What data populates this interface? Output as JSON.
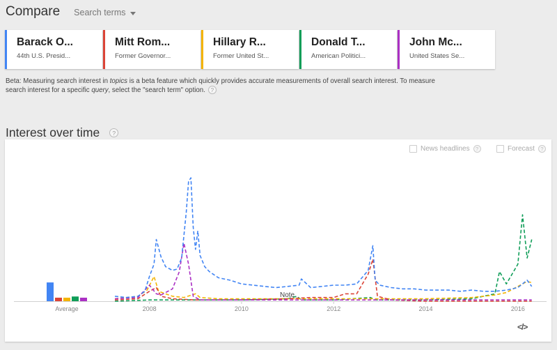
{
  "header": {
    "title": "Compare",
    "search_terms_label": "Search terms"
  },
  "topics": [
    {
      "name": "Barack O...",
      "desc": "44th U.S. Presid...",
      "color": "#4285f4"
    },
    {
      "name": "Mitt Rom...",
      "desc": "Former Governor...",
      "color": "#db4437"
    },
    {
      "name": "Hillary R...",
      "desc": "Former United St...",
      "color": "#f4b400"
    },
    {
      "name": "Donald T...",
      "desc": "American Politici...",
      "color": "#0f9d58"
    },
    {
      "name": "John Mc...",
      "desc": "United States Se...",
      "color": "#ab30c4"
    }
  ],
  "beta_note": {
    "part1": "Beta: Measuring search interest in ",
    "topics_word": "topics",
    "part2": " is a beta feature which quickly provides accurate measurements of overall search interest. To measure search interest for a specific ",
    "query_word": "query",
    "part3": ", select the \"search term\" option."
  },
  "section": {
    "title": "Interest over time",
    "help": "?"
  },
  "options": {
    "news_headlines": "News headlines",
    "forecast": "Forecast"
  },
  "embed_label": "</>",
  "chart_data": {
    "type": "line",
    "average_label": "Average",
    "note_label": "Note",
    "x_ticks": [
      "2008",
      "2010",
      "2012",
      "2014",
      "2016"
    ],
    "ylim": [
      0,
      100
    ],
    "averages": [
      {
        "name": "Barack O...",
        "value": 16
      },
      {
        "name": "Mitt Rom...",
        "value": 3
      },
      {
        "name": "Hillary R...",
        "value": 3
      },
      {
        "name": "Donald T...",
        "value": 4
      },
      {
        "name": "John Mc...",
        "value": 3
      }
    ],
    "series": [
      {
        "name": "Barack O...",
        "dash": true,
        "points": [
          [
            2007.25,
            4
          ],
          [
            2007.5,
            3
          ],
          [
            2007.75,
            4
          ],
          [
            2007.9,
            8
          ],
          [
            2008.0,
            20
          ],
          [
            2008.1,
            30
          ],
          [
            2008.15,
            50
          ],
          [
            2008.25,
            36
          ],
          [
            2008.35,
            28
          ],
          [
            2008.5,
            25
          ],
          [
            2008.6,
            26
          ],
          [
            2008.7,
            35
          ],
          [
            2008.8,
            72
          ],
          [
            2008.85,
            97
          ],
          [
            2008.9,
            100
          ],
          [
            2008.95,
            60
          ],
          [
            2009.0,
            42
          ],
          [
            2009.05,
            57
          ],
          [
            2009.1,
            37
          ],
          [
            2009.2,
            28
          ],
          [
            2009.3,
            24
          ],
          [
            2009.5,
            19
          ],
          [
            2009.75,
            17
          ],
          [
            2010.0,
            14
          ],
          [
            2010.25,
            13
          ],
          [
            2010.5,
            12
          ],
          [
            2010.75,
            11
          ],
          [
            2011.0,
            12
          ],
          [
            2011.25,
            13
          ],
          [
            2011.3,
            18
          ],
          [
            2011.5,
            11
          ],
          [
            2011.75,
            12
          ],
          [
            2012.0,
            13
          ],
          [
            2012.25,
            13
          ],
          [
            2012.5,
            14
          ],
          [
            2012.75,
            25
          ],
          [
            2012.85,
            45
          ],
          [
            2012.9,
            17
          ],
          [
            2013.0,
            13
          ],
          [
            2013.25,
            11
          ],
          [
            2013.5,
            10
          ],
          [
            2013.75,
            10
          ],
          [
            2014.0,
            9
          ],
          [
            2014.25,
            9
          ],
          [
            2014.5,
            9
          ],
          [
            2014.75,
            8
          ],
          [
            2015.0,
            9
          ],
          [
            2015.25,
            8
          ],
          [
            2015.5,
            8
          ],
          [
            2015.75,
            9
          ],
          [
            2016.0,
            11
          ],
          [
            2016.2,
            17
          ],
          [
            2016.3,
            12
          ]
        ]
      },
      {
        "name": "Mitt Rom...",
        "dash": true,
        "points": [
          [
            2007.25,
            1
          ],
          [
            2007.75,
            2
          ],
          [
            2008.0,
            8
          ],
          [
            2008.15,
            11
          ],
          [
            2008.25,
            4
          ],
          [
            2008.5,
            2
          ],
          [
            2009.0,
            1
          ],
          [
            2010.0,
            1
          ],
          [
            2011.0,
            2
          ],
          [
            2011.5,
            3
          ],
          [
            2012.0,
            3
          ],
          [
            2012.25,
            6
          ],
          [
            2012.5,
            6
          ],
          [
            2012.75,
            22
          ],
          [
            2012.85,
            34
          ],
          [
            2012.95,
            4
          ],
          [
            2013.25,
            1
          ],
          [
            2014.0,
            0
          ],
          [
            2015.0,
            0
          ],
          [
            2016.0,
            0
          ],
          [
            2016.3,
            0
          ]
        ]
      },
      {
        "name": "Hillary R...",
        "dash": true,
        "points": [
          [
            2007.25,
            2
          ],
          [
            2007.75,
            4
          ],
          [
            2007.95,
            9
          ],
          [
            2008.1,
            20
          ],
          [
            2008.2,
            8
          ],
          [
            2008.35,
            6
          ],
          [
            2008.5,
            4
          ],
          [
            2008.75,
            3
          ],
          [
            2009.0,
            6
          ],
          [
            2009.1,
            3
          ],
          [
            2009.5,
            2
          ],
          [
            2010.0,
            2
          ],
          [
            2011.0,
            2
          ],
          [
            2012.0,
            2
          ],
          [
            2013.0,
            2
          ],
          [
            2014.0,
            2
          ],
          [
            2015.0,
            3
          ],
          [
            2015.25,
            4
          ],
          [
            2015.5,
            5
          ],
          [
            2015.75,
            7
          ],
          [
            2016.0,
            12
          ],
          [
            2016.2,
            16
          ],
          [
            2016.3,
            15
          ]
        ]
      },
      {
        "name": "Donald T...",
        "dash": true,
        "points": [
          [
            2007.25,
            0
          ],
          [
            2008.0,
            1
          ],
          [
            2009.0,
            1
          ],
          [
            2010.0,
            1
          ],
          [
            2011.0,
            2
          ],
          [
            2011.2,
            4
          ],
          [
            2011.3,
            1
          ],
          [
            2012.0,
            1
          ],
          [
            2012.8,
            3
          ],
          [
            2012.9,
            1
          ],
          [
            2014.0,
            1
          ],
          [
            2015.0,
            2
          ],
          [
            2015.5,
            6
          ],
          [
            2015.6,
            24
          ],
          [
            2015.75,
            14
          ],
          [
            2016.0,
            30
          ],
          [
            2016.1,
            70
          ],
          [
            2016.2,
            35
          ],
          [
            2016.3,
            50
          ]
        ]
      },
      {
        "name": "John Mc...",
        "dash": true,
        "points": [
          [
            2007.25,
            2
          ],
          [
            2007.75,
            3
          ],
          [
            2008.0,
            13
          ],
          [
            2008.15,
            6
          ],
          [
            2008.25,
            5
          ],
          [
            2008.5,
            10
          ],
          [
            2008.65,
            24
          ],
          [
            2008.75,
            47
          ],
          [
            2008.85,
            30
          ],
          [
            2008.95,
            4
          ],
          [
            2009.1,
            1
          ],
          [
            2010.0,
            1
          ],
          [
            2011.0,
            1
          ],
          [
            2012.0,
            1
          ],
          [
            2013.0,
            1
          ],
          [
            2014.0,
            1
          ],
          [
            2015.0,
            1
          ],
          [
            2016.0,
            1
          ],
          [
            2016.3,
            1
          ]
        ]
      }
    ]
  }
}
